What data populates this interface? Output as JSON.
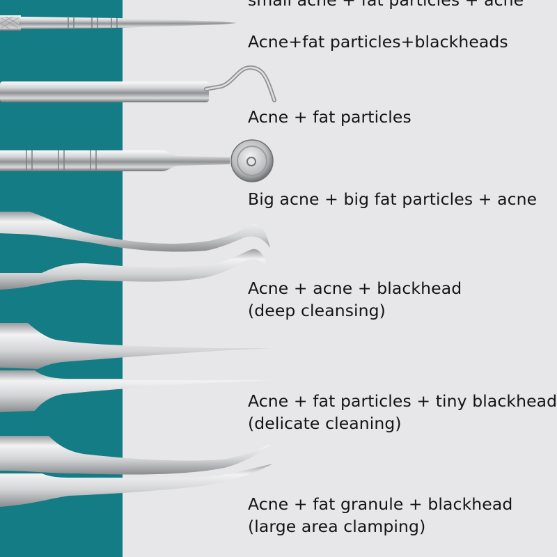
{
  "page": {
    "background": "#e7e6e8",
    "accent_band": "#147c84",
    "text_color": "#141414"
  },
  "items": [
    {
      "tool_icon": "pointed-needle-icon",
      "lines": [
        "Acne+fat particles+blackheads"
      ]
    },
    {
      "tool_icon": "bent-hook-needle-icon",
      "lines": [
        "Acne + fat particles"
      ]
    },
    {
      "tool_icon": "loop-extractor-icon",
      "lines": [
        "Big acne + big fat particles + acne"
      ]
    },
    {
      "tool_icon": "curved-tweezers-icon",
      "lines": [
        "Acne + acne + blackhead",
        "(deep cleansing)"
      ]
    },
    {
      "tool_icon": "straight-tweezers-icon",
      "lines": [
        "Acne + fat particles + tiny blackhead",
        "(delicate cleaning)"
      ]
    },
    {
      "tool_icon": "angled-tweezers-icon",
      "lines": [
        "Acne + fat granule + blackhead",
        "(large area clamping)"
      ]
    }
  ]
}
